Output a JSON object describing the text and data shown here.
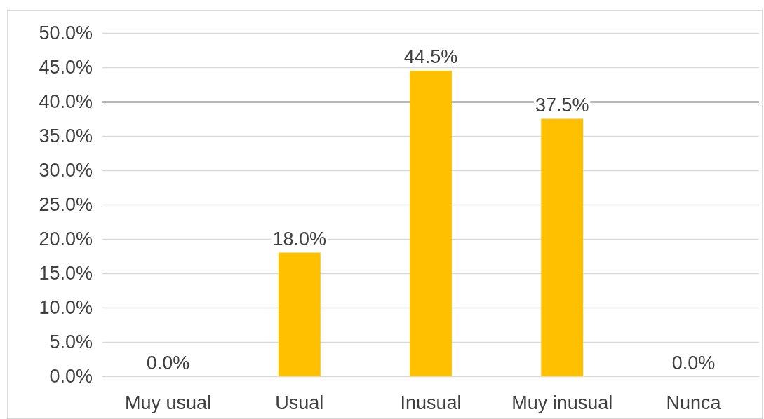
{
  "chart_data": {
    "type": "bar",
    "categories": [
      "Muy usual",
      "Usual",
      "Inusual",
      "Muy inusual",
      "Nunca"
    ],
    "values": [
      0.0,
      18.0,
      44.5,
      37.5,
      0.0
    ],
    "color": "#ffc000",
    "ylim": [
      0,
      50
    ],
    "yticks": [
      {
        "value": 0,
        "label": "0.0%"
      },
      {
        "value": 5,
        "label": "5.0%"
      },
      {
        "value": 10,
        "label": "10.0%"
      },
      {
        "value": 15,
        "label": "15.0%"
      },
      {
        "value": 20,
        "label": "20.0%"
      },
      {
        "value": 25,
        "label": "25.0%"
      },
      {
        "value": 30,
        "label": "30.0%"
      },
      {
        "value": 35,
        "label": "35.0%"
      },
      {
        "value": 40,
        "label": "40.0%"
      },
      {
        "value": 45,
        "label": "45.0%"
      },
      {
        "value": 50,
        "label": "50.0%"
      }
    ],
    "value_labels": [
      "0.0%",
      "18.0%",
      "44.5%",
      "37.5%",
      "0.0%"
    ],
    "ref_lines": [
      {
        "axis": "y",
        "value": 40,
        "color": "#000000"
      }
    ],
    "grid": "y"
  }
}
